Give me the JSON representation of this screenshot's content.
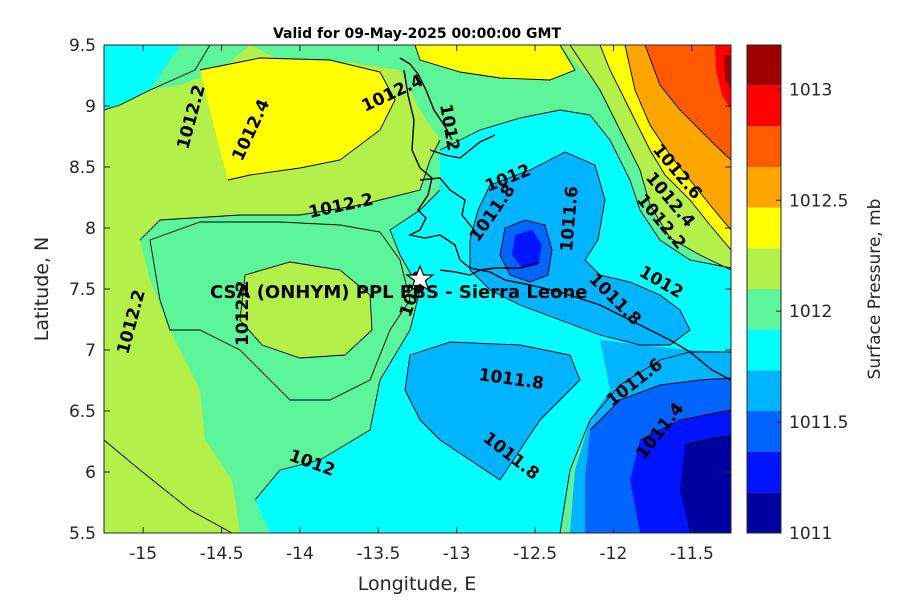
{
  "title": "Valid for 09-May-2025 00:00:00 GMT",
  "x_axis": {
    "label": "Longitude, E",
    "ticks": [
      "-15",
      "-14.5",
      "-14",
      "-13.5",
      "-13",
      "-12.5",
      "-12",
      "-11.5"
    ]
  },
  "y_axis": {
    "label": "Latitude, N",
    "ticks": [
      "9.5",
      "9",
      "8.5",
      "8",
      "7.5",
      "7",
      "6.5",
      "6",
      "5.5"
    ]
  },
  "colorbar": {
    "label": "Surface Pressure, mb",
    "ticks": [
      "1013",
      "1012.5",
      "1012",
      "1011.5",
      "1011"
    ],
    "colors": [
      "#a00000",
      "#ff0000",
      "#ff5a00",
      "#ffa500",
      "#ffff00",
      "#b4f04a",
      "#5cf59a",
      "#00ffff",
      "#00b4ff",
      "#0064ff",
      "#0014ff",
      "#0000a0"
    ]
  },
  "site": {
    "label": "CSA (ONHYM) PPL FBS  - Sierra Leone",
    "marker": "star-icon"
  },
  "contour_labels": [
    "1012.2",
    "1012.4",
    "1012.4",
    "1012",
    "1012",
    "1012.2",
    "1011.8",
    "1011.6",
    "1012.6",
    "1012.4",
    "1012.2",
    "1012",
    "1011.8",
    "1012.2",
    "1012.2",
    "1012",
    "1011.8",
    "1011.6",
    "1011.4",
    "1012",
    "1011.8"
  ],
  "chart_data": {
    "type": "heatmap",
    "title": "Valid for 09-May-2025 00:00:00 GMT",
    "xlabel": "Longitude, E",
    "ylabel": "Latitude, N",
    "xlim": [
      -15.25,
      -11.25
    ],
    "ylim": [
      5.5,
      9.5
    ],
    "colorbar_label": "Surface Pressure, mb",
    "colorbar_range": [
      1011,
      1013.2
    ],
    "contour_interval": 0.2,
    "site": {
      "name": "CSA (ONHYM) PPL FBS  - Sierra Leone",
      "lon": -13.23,
      "lat": 7.58
    }
  }
}
